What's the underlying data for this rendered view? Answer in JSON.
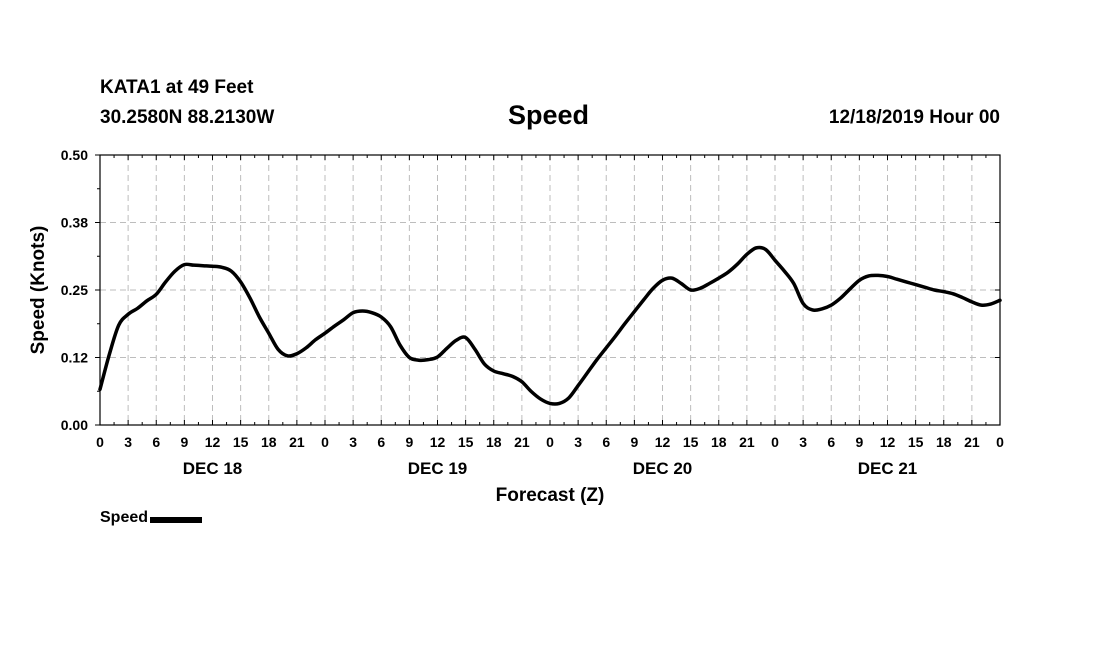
{
  "header": {
    "station": "KATA1 at 49 Feet",
    "coords": "30.2580N 88.2130W",
    "title": "Speed",
    "datetime": "12/18/2019 Hour 00"
  },
  "legend": {
    "label": "Speed"
  },
  "chart_data": {
    "type": "line",
    "title": "Speed",
    "xlabel": "Forecast (Z)",
    "ylabel": "Speed (Knots)",
    "ylim": [
      0,
      0.5
    ],
    "yticks": [
      "0.00",
      "0.12",
      "0.25",
      "0.38",
      "0.50"
    ],
    "ytick_values": [
      0,
      0.125,
      0.25,
      0.375,
      0.5
    ],
    "xlim": [
      0,
      96
    ],
    "xtick_hours": [
      0,
      3,
      6,
      9,
      12,
      15,
      18,
      21,
      24,
      27,
      30,
      33,
      36,
      39,
      42,
      45,
      48,
      51,
      54,
      57,
      60,
      63,
      66,
      69,
      72,
      75,
      78,
      81,
      84,
      87,
      90,
      93,
      96
    ],
    "xtick_labels": [
      "0",
      "3",
      "6",
      "9",
      "12",
      "15",
      "18",
      "21",
      "0",
      "3",
      "6",
      "9",
      "12",
      "15",
      "18",
      "21",
      "0",
      "3",
      "6",
      "9",
      "12",
      "15",
      "18",
      "21",
      "0",
      "3",
      "6",
      "9",
      "12",
      "15",
      "18",
      "21",
      "0"
    ],
    "day_labels": [
      {
        "hour": 12,
        "label": "DEC 18"
      },
      {
        "hour": 36,
        "label": "DEC 19"
      },
      {
        "hour": 60,
        "label": "DEC 20"
      },
      {
        "hour": 84,
        "label": "DEC 21"
      }
    ],
    "grid": true,
    "legend_position": "bottom-left",
    "series": [
      {
        "name": "Speed",
        "color": "#000000",
        "x": [
          0,
          1,
          2,
          3,
          4,
          5,
          6,
          7,
          8,
          9,
          10,
          11,
          12,
          13,
          14,
          15,
          16,
          17,
          18,
          19,
          20,
          21,
          22,
          23,
          24,
          25,
          26,
          27,
          28,
          29,
          30,
          31,
          32,
          33,
          34,
          35,
          36,
          37,
          38,
          39,
          40,
          41,
          42,
          43,
          44,
          45,
          46,
          47,
          48,
          49,
          50,
          51,
          52,
          53,
          54,
          55,
          56,
          57,
          58,
          59,
          60,
          61,
          62,
          63,
          64,
          65,
          66,
          67,
          68,
          69,
          70,
          71,
          72,
          73,
          74,
          75,
          76,
          77,
          78,
          79,
          80,
          81,
          82,
          83,
          84,
          85,
          86,
          87,
          88,
          89,
          90,
          91,
          92,
          93,
          94,
          95,
          96
        ],
        "y": [
          0.066,
          0.131,
          0.185,
          0.205,
          0.216,
          0.23,
          0.242,
          0.265,
          0.285,
          0.297,
          0.296,
          0.295,
          0.294,
          0.292,
          0.285,
          0.265,
          0.235,
          0.2,
          0.17,
          0.14,
          0.128,
          0.132,
          0.143,
          0.158,
          0.17,
          0.183,
          0.195,
          0.208,
          0.211,
          0.208,
          0.2,
          0.182,
          0.148,
          0.125,
          0.12,
          0.121,
          0.126,
          0.142,
          0.157,
          0.162,
          0.14,
          0.113,
          0.1,
          0.095,
          0.09,
          0.08,
          0.062,
          0.048,
          0.04,
          0.04,
          0.05,
          0.073,
          0.097,
          0.121,
          0.143,
          0.165,
          0.188,
          0.21,
          0.232,
          0.253,
          0.268,
          0.272,
          0.262,
          0.25,
          0.253,
          0.262,
          0.272,
          0.283,
          0.298,
          0.316,
          0.328,
          0.325,
          0.305,
          0.285,
          0.262,
          0.225,
          0.213,
          0.215,
          0.222,
          0.235,
          0.252,
          0.268,
          0.276,
          0.277,
          0.275,
          0.27,
          0.265,
          0.26,
          0.255,
          0.25,
          0.247,
          0.243,
          0.236,
          0.228,
          0.222,
          0.224,
          0.231
        ]
      }
    ]
  }
}
